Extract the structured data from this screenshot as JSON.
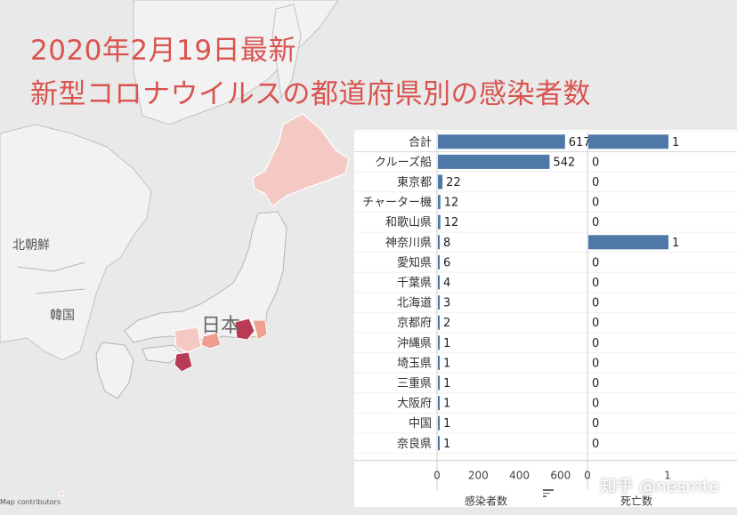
{
  "title": {
    "line1": "2020年2月19日最新",
    "line2": "新型コロナウイルスの都道府県別の感染者数"
  },
  "map": {
    "labels": {
      "north_korea": "北朝鮮",
      "korea": "韓国",
      "japan": "日本"
    },
    "attribution": "Map contributors",
    "colors": {
      "land": "#f2f2f2",
      "sea": "#e9e9e9",
      "border": "#b5b5b5",
      "light": "#f4c9c4",
      "mid": "#ef9f90",
      "dark": "#b83a55"
    }
  },
  "watermark": "知乎 @nesmto",
  "chart_data": {
    "type": "bar",
    "orientation": "horizontal",
    "categories": [
      "合計",
      "クルーズ船",
      "東京都",
      "チャーター機",
      "和歌山県",
      "神奈川県",
      "愛知県",
      "千葉県",
      "北海道",
      "京都府",
      "沖縄県",
      "埼玉県",
      "三重県",
      "大阪府",
      "中国",
      "奈良県"
    ],
    "series": [
      {
        "name": "感染者数",
        "values": [
          617,
          542,
          22,
          12,
          12,
          8,
          6,
          4,
          3,
          2,
          1,
          1,
          1,
          1,
          1,
          1
        ],
        "xlim": [
          0,
          700
        ],
        "ticks": [
          0,
          200,
          400,
          600
        ],
        "tick_labels": [
          "0",
          "200",
          "400",
          "600"
        ]
      },
      {
        "name": "死亡数",
        "values": [
          1,
          0,
          0,
          0,
          0,
          1,
          0,
          0,
          0,
          0,
          0,
          0,
          0,
          0,
          0,
          0
        ],
        "xlim": [
          0,
          1.2
        ],
        "ticks": [
          0,
          1
        ],
        "tick_labels": [
          "0",
          "1"
        ]
      }
    ],
    "bar_color": "#4e79a7"
  }
}
